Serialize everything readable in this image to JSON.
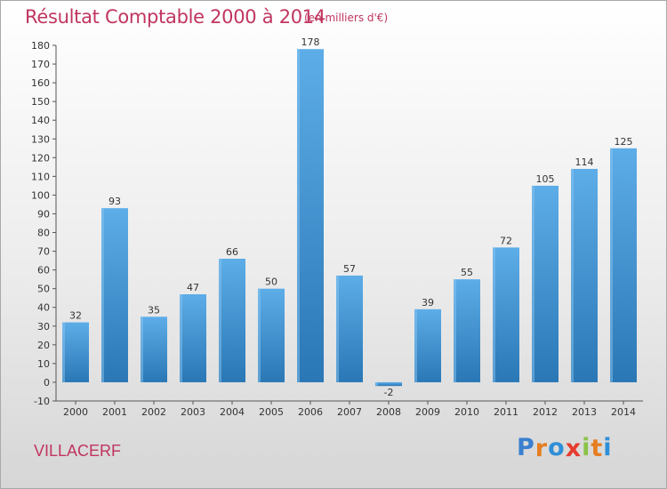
{
  "header": {
    "title": "Résultat Comptable 2000 à 2014",
    "subtitle": "(en milliers d'€)"
  },
  "footer": {
    "commune": "VILLACERF",
    "logo": "Proxiti",
    "logo_letters": [
      {
        "ch": "P",
        "color": "#3a7fd0"
      },
      {
        "ch": "r",
        "color": "#e67e22"
      },
      {
        "ch": "o",
        "color": "#2e8fd8"
      },
      {
        "ch": "x",
        "color": "#e63b2e"
      },
      {
        "ch": "i",
        "color": "#8bc34a"
      },
      {
        "ch": "t",
        "color": "#e67e22"
      },
      {
        "ch": "i",
        "color": "#2e8fd8"
      }
    ]
  },
  "chart_data": {
    "type": "bar",
    "categories": [
      "2000",
      "2001",
      "2002",
      "2003",
      "2004",
      "2005",
      "2006",
      "2007",
      "2008",
      "2009",
      "2010",
      "2011",
      "2012",
      "2013",
      "2014"
    ],
    "values": [
      32,
      93,
      35,
      47,
      66,
      50,
      178,
      57,
      -2,
      39,
      55,
      72,
      105,
      114,
      125
    ],
    "title": "Résultat Comptable 2000 à 2014",
    "subtitle": "(en milliers d'€)",
    "xlabel": "",
    "ylabel": "",
    "ylim": [
      -10,
      180
    ],
    "yticks": [
      -10,
      0,
      10,
      20,
      30,
      40,
      50,
      60,
      70,
      80,
      90,
      100,
      110,
      120,
      130,
      140,
      150,
      160,
      170,
      180
    ],
    "grid": false,
    "legend": "none",
    "colors": {
      "bar_light": "#5dade8",
      "bar_dark": "#2a77b5",
      "axis": "#555555",
      "text": "#333333",
      "title": "#c0355f"
    }
  }
}
